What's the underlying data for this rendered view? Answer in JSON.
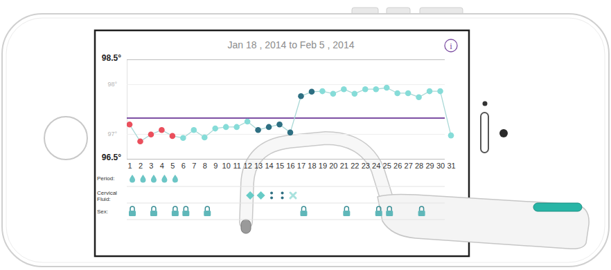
{
  "chart_data": {
    "type": "line",
    "title": "Jan 18 , 2014 to Feb 5 , 2014",
    "info_label": "i",
    "categories": [
      "1",
      "2",
      "3",
      "4",
      "5",
      "6",
      "7",
      "8",
      "9",
      "10",
      "11",
      "12",
      "13",
      "14",
      "15",
      "16",
      "17",
      "18",
      "19",
      "20",
      "21",
      "22",
      "23",
      "24",
      "25",
      "26",
      "27",
      "28",
      "29",
      "30",
      "31"
    ],
    "values": [
      97.19,
      96.85,
      96.99,
      97.08,
      96.96,
      96.92,
      97.08,
      96.93,
      97.11,
      97.14,
      97.14,
      97.25,
      97.08,
      97.14,
      97.19,
      97.03,
      97.76,
      97.85,
      97.86,
      97.81,
      97.9,
      97.81,
      97.9,
      97.9,
      97.93,
      97.82,
      97.82,
      97.74,
      97.86,
      97.86,
      96.97
    ],
    "colors": [
      "#ea4f5c",
      "#ea4f5c",
      "#ea4f5c",
      "#ea4f5c",
      "#ea4f5c",
      "#86dcd8",
      "#86dcd8",
      "#86dcd8",
      "#86dcd8",
      "#86dcd8",
      "#86dcd8",
      "#86dcd8",
      "#2e6f82",
      "#2e6f82",
      "#2e6f82",
      "#2e6f82",
      "#2e6f82",
      "#2e6f82",
      "#86dcd8",
      "#86dcd8",
      "#86dcd8",
      "#86dcd8",
      "#86dcd8",
      "#86dcd8",
      "#86dcd8",
      "#86dcd8",
      "#86dcd8",
      "#86dcd8",
      "#86dcd8",
      "#86dcd8",
      "#86dcd8"
    ],
    "color": "#a9d8d6",
    "marker": "circle",
    "ylim": [
      96.5,
      98.5
    ],
    "yticks": [
      {
        "value": 98.5,
        "label": "98.5°"
      },
      {
        "value": 98,
        "label": "98°"
      },
      {
        "value": 97,
        "label": "97°"
      },
      {
        "value": 96.5,
        "label": "96.5°"
      }
    ],
    "grid": true,
    "reference_line": {
      "value": 97.32,
      "color": "#7d4fa3"
    },
    "rows": [
      {
        "label": "Period:",
        "marker": "drop",
        "days": [
          1,
          2,
          3,
          4,
          5
        ]
      },
      {
        "label": "Cervical Fluid:",
        "entries": [
          {
            "day": 12,
            "marker": "diamond"
          },
          {
            "day": 13,
            "marker": "diamond"
          },
          {
            "day": 14,
            "marker": "dots"
          },
          {
            "day": 15,
            "marker": "dots"
          },
          {
            "day": 16,
            "marker": "cross"
          }
        ]
      },
      {
        "label": "Sex:",
        "marker": "lock",
        "days": [
          1,
          3,
          5,
          6,
          8,
          17,
          21,
          24,
          25,
          28
        ]
      }
    ]
  }
}
